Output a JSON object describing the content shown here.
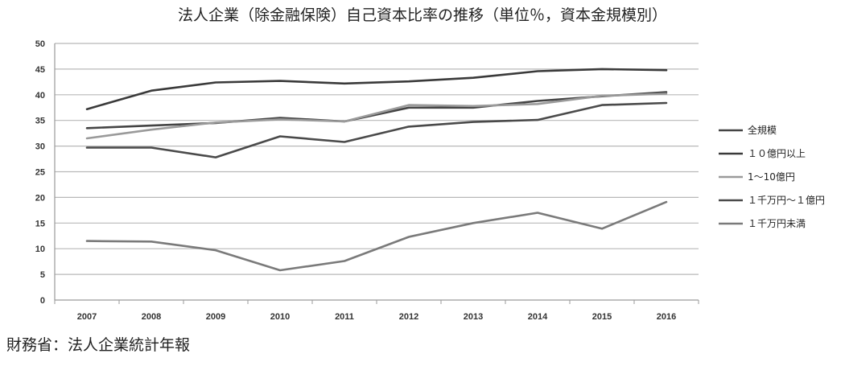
{
  "source": "財務省：法人企業統計年報",
  "chart_data": {
    "type": "line",
    "title": "法人企業（除金融保険）自己資本比率の推移（単位％，資本金規模別）",
    "xlabel": "",
    "ylabel": "",
    "x": [
      "2007",
      "2008",
      "2009",
      "2010",
      "2011",
      "2012",
      "2013",
      "2014",
      "2015",
      "2016"
    ],
    "ylim": [
      0,
      50
    ],
    "yticks": [
      0,
      5,
      10,
      15,
      20,
      25,
      30,
      35,
      40,
      45,
      50
    ],
    "grid": true,
    "legend": "right",
    "series": [
      {
        "name": "全規模",
        "color": "#444444",
        "values": [
          33.5,
          34.0,
          34.5,
          35.5,
          34.8,
          37.5,
          37.5,
          38.8,
          39.7,
          40.5
        ]
      },
      {
        "name": "１０億円以上",
        "color": "#3a3a3a",
        "values": [
          37.2,
          40.8,
          42.4,
          42.7,
          42.2,
          42.6,
          43.3,
          44.6,
          45.0,
          44.8
        ]
      },
      {
        "name": "1～10億円",
        "color": "#9a9a9a",
        "values": [
          31.5,
          33.2,
          34.6,
          35.2,
          34.8,
          38.0,
          37.8,
          38.2,
          39.8,
          40.2
        ]
      },
      {
        "name": "１千万円～１億円",
        "color": "#4a4a4a",
        "values": [
          29.7,
          29.7,
          27.8,
          31.9,
          30.8,
          33.8,
          34.7,
          35.1,
          38.0,
          38.4
        ]
      },
      {
        "name": "１千万円未満",
        "color": "#7a7a7a",
        "values": [
          11.5,
          11.4,
          9.7,
          5.8,
          7.6,
          12.3,
          15.0,
          17.0,
          13.9,
          19.1
        ]
      }
    ]
  }
}
